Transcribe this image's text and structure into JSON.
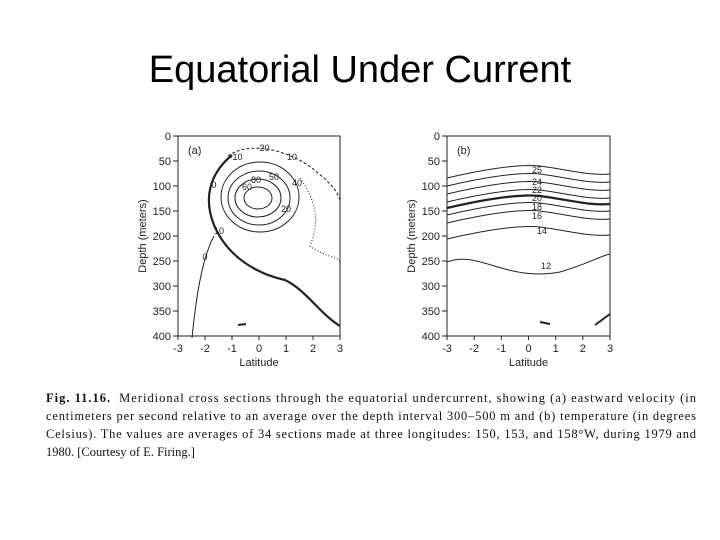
{
  "title": "Equatorial Under Current",
  "panels": [
    {
      "label": "(a)",
      "ylabel": "Depth (meters)",
      "xlabel": "Latitude",
      "yticks": [
        0,
        50,
        100,
        150,
        200,
        250,
        300,
        350,
        400
      ],
      "xticks": [
        -3,
        -2,
        -1,
        0,
        1,
        2,
        3
      ],
      "contour_labels": [
        "-20",
        "-10",
        "0",
        "10",
        "20",
        "40",
        "50",
        "60",
        "80",
        "0",
        "10"
      ]
    },
    {
      "label": "(b)",
      "ylabel": "Depth (meters)",
      "xlabel": "Latitude",
      "yticks": [
        0,
        50,
        100,
        150,
        200,
        250,
        300,
        350,
        400
      ],
      "xticks": [
        -3,
        -2,
        -1,
        0,
        1,
        2,
        3
      ],
      "contour_labels": [
        "25",
        "24",
        "22",
        "20",
        "18",
        "16",
        "14",
        "12"
      ]
    }
  ],
  "caption": {
    "label": "Fig. 11.16.",
    "lines": [
      "Meridional cross sections through the equatorial undercurrent, showing (a) eastward velocity (in",
      "centimeters per second relative to an average over the depth interval 300–500 m and (b) temperature (in degrees",
      "Celsius). The values are averages of 34 sections made at three longitudes: 150, 153, and 158°W, during 1979 and",
      "1980. [Courtesy of E. Firing.]"
    ]
  }
}
